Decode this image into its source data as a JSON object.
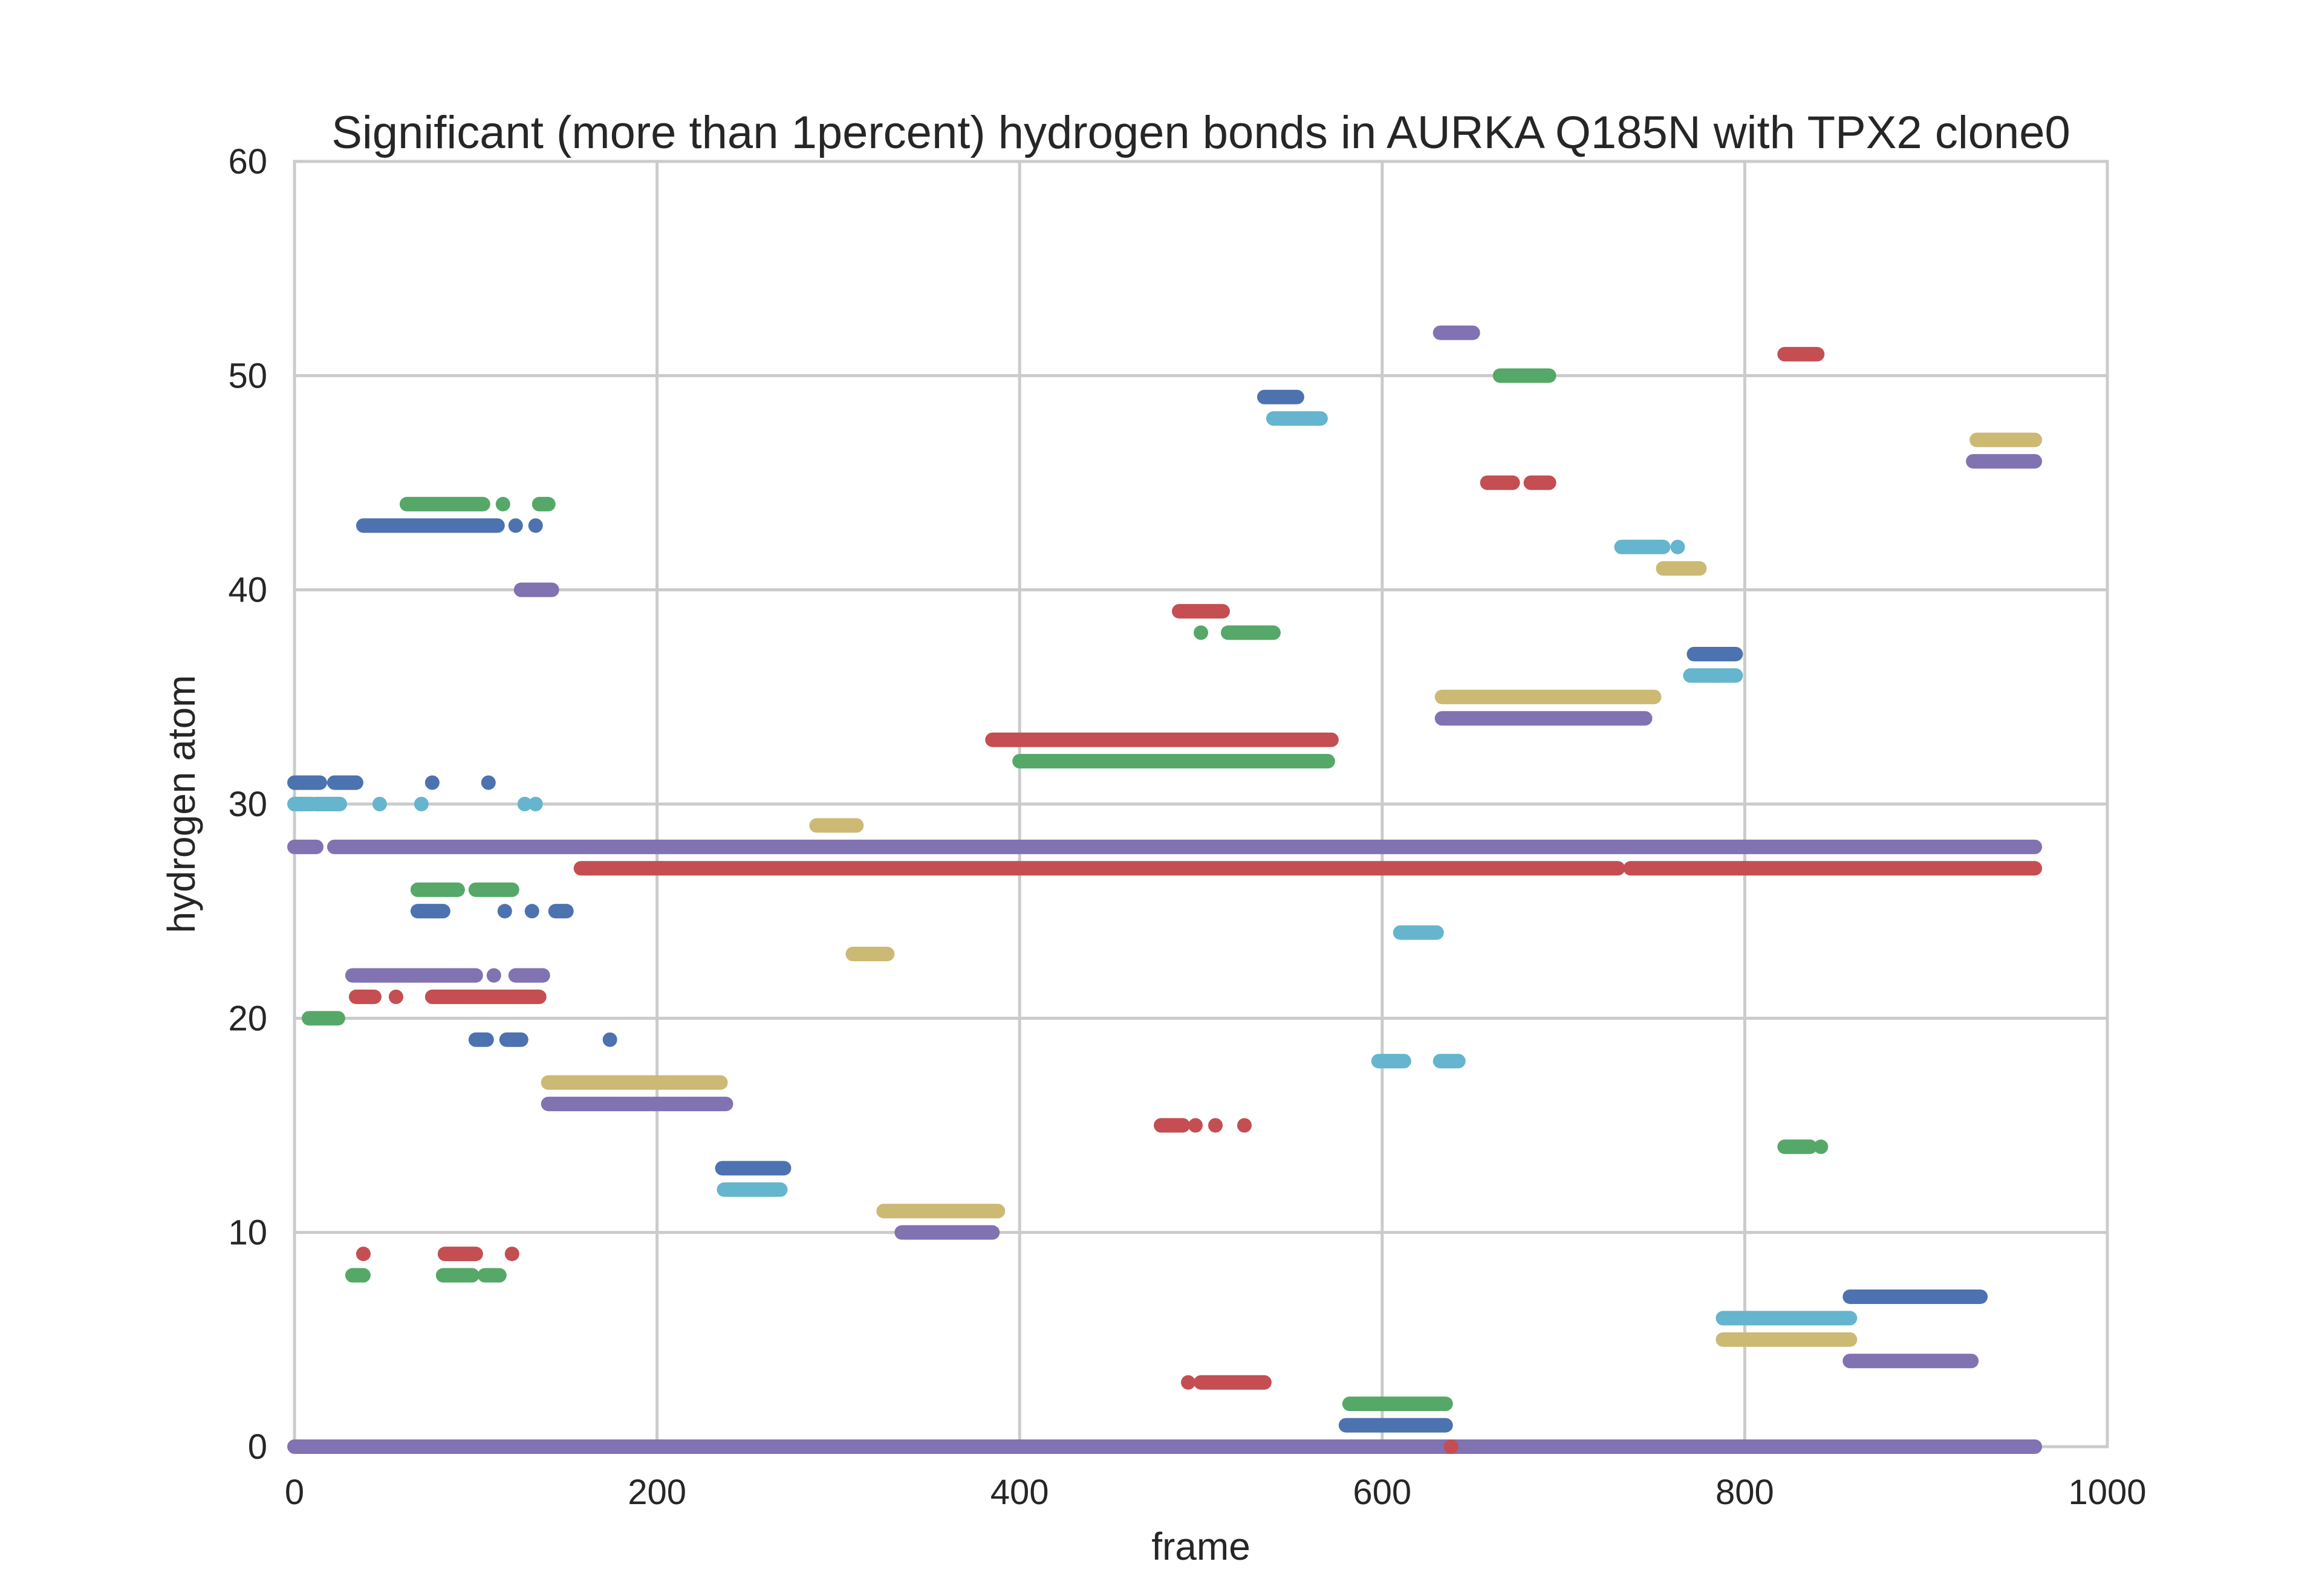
{
  "chart_data": {
    "type": "scatter",
    "title": "Significant (more than 1percent) hydrogen bonds in AURKA Q185N with TPX2 clone0",
    "xlabel": "frame",
    "ylabel": "hydrogen atom",
    "xlim": [
      0,
      1000
    ],
    "ylim": [
      0,
      60
    ],
    "xticks": [
      "0",
      "200",
      "400",
      "600",
      "800",
      "1000"
    ],
    "yticks": [
      "0",
      "10",
      "20",
      "30",
      "40",
      "50",
      "60"
    ],
    "grid": true,
    "legend": "none",
    "palette": {
      "blue": "#4C72B0",
      "green": "#55A868",
      "red": "#C44E52",
      "purple": "#8172B2",
      "yellow": "#CCB974",
      "cyan": "#64B5CD"
    },
    "segments": [
      {
        "color": "purple",
        "y": 0,
        "x0": 0,
        "x1": 960
      },
      {
        "color": "blue",
        "y": 1,
        "x0": 580,
        "x1": 635
      },
      {
        "color": "green",
        "y": 2,
        "x0": 582,
        "x1": 635
      },
      {
        "color": "red",
        "y": 3,
        "x0": 500,
        "x1": 535
      },
      {
        "color": "purple",
        "y": 4,
        "x0": 858,
        "x1": 925
      },
      {
        "color": "yellow",
        "y": 5,
        "x0": 788,
        "x1": 858
      },
      {
        "color": "cyan",
        "y": 6,
        "x0": 788,
        "x1": 858
      },
      {
        "color": "blue",
        "y": 7,
        "x0": 858,
        "x1": 930
      },
      {
        "color": "green",
        "y": 8,
        "x0": 32,
        "x1": 38
      },
      {
        "color": "green",
        "y": 8,
        "x0": 82,
        "x1": 98
      },
      {
        "color": "green",
        "y": 8,
        "x0": 105,
        "x1": 112
      },
      {
        "color": "red",
        "y": 9,
        "x0": 83,
        "x1": 100
      },
      {
        "color": "purple",
        "y": 10,
        "x0": 335,
        "x1": 385
      },
      {
        "color": "yellow",
        "y": 11,
        "x0": 325,
        "x1": 388
      },
      {
        "color": "cyan",
        "y": 12,
        "x0": 237,
        "x1": 268
      },
      {
        "color": "blue",
        "y": 13,
        "x0": 236,
        "x1": 270
      },
      {
        "color": "green",
        "y": 14,
        "x0": 822,
        "x1": 836
      },
      {
        "color": "red",
        "y": 15,
        "x0": 478,
        "x1": 490
      },
      {
        "color": "purple",
        "y": 16,
        "x0": 140,
        "x1": 238
      },
      {
        "color": "yellow",
        "y": 17,
        "x0": 140,
        "x1": 235
      },
      {
        "color": "cyan",
        "y": 18,
        "x0": 598,
        "x1": 612
      },
      {
        "color": "cyan",
        "y": 18,
        "x0": 632,
        "x1": 642
      },
      {
        "color": "blue",
        "y": 19,
        "x0": 100,
        "x1": 106
      },
      {
        "color": "blue",
        "y": 19,
        "x0": 117,
        "x1": 125
      },
      {
        "color": "green",
        "y": 20,
        "x0": 8,
        "x1": 24
      },
      {
        "color": "red",
        "y": 21,
        "x0": 34,
        "x1": 44
      },
      {
        "color": "red",
        "y": 21,
        "x0": 76,
        "x1": 135
      },
      {
        "color": "purple",
        "y": 22,
        "x0": 32,
        "x1": 100
      },
      {
        "color": "purple",
        "y": 22,
        "x0": 122,
        "x1": 137
      },
      {
        "color": "yellow",
        "y": 23,
        "x0": 308,
        "x1": 327
      },
      {
        "color": "cyan",
        "y": 24,
        "x0": 610,
        "x1": 630
      },
      {
        "color": "blue",
        "y": 25,
        "x0": 68,
        "x1": 82
      },
      {
        "color": "blue",
        "y": 25,
        "x0": 144,
        "x1": 150
      },
      {
        "color": "green",
        "y": 26,
        "x0": 68,
        "x1": 90
      },
      {
        "color": "green",
        "y": 26,
        "x0": 100,
        "x1": 120
      },
      {
        "color": "red",
        "y": 27,
        "x0": 158,
        "x1": 730
      },
      {
        "color": "red",
        "y": 27,
        "x0": 737,
        "x1": 960
      },
      {
        "color": "purple",
        "y": 28,
        "x0": 0,
        "x1": 12
      },
      {
        "color": "purple",
        "y": 28,
        "x0": 22,
        "x1": 960
      },
      {
        "color": "yellow",
        "y": 29,
        "x0": 288,
        "x1": 310
      },
      {
        "color": "cyan",
        "y": 30,
        "x0": 0,
        "x1": 10
      },
      {
        "color": "cyan",
        "y": 30,
        "x0": 12,
        "x1": 25
      },
      {
        "color": "blue",
        "y": 31,
        "x0": 0,
        "x1": 14
      },
      {
        "color": "blue",
        "y": 31,
        "x0": 22,
        "x1": 34
      },
      {
        "color": "green",
        "y": 32,
        "x0": 400,
        "x1": 570
      },
      {
        "color": "red",
        "y": 33,
        "x0": 385,
        "x1": 572
      },
      {
        "color": "purple",
        "y": 34,
        "x0": 633,
        "x1": 745
      },
      {
        "color": "yellow",
        "y": 35,
        "x0": 633,
        "x1": 750
      },
      {
        "color": "cyan",
        "y": 36,
        "x0": 770,
        "x1": 795
      },
      {
        "color": "blue",
        "y": 37,
        "x0": 772,
        "x1": 795
      },
      {
        "color": "green",
        "y": 38,
        "x0": 515,
        "x1": 540
      },
      {
        "color": "red",
        "y": 39,
        "x0": 488,
        "x1": 512
      },
      {
        "color": "purple",
        "y": 40,
        "x0": 125,
        "x1": 142
      },
      {
        "color": "yellow",
        "y": 41,
        "x0": 755,
        "x1": 775
      },
      {
        "color": "cyan",
        "y": 42,
        "x0": 732,
        "x1": 755
      },
      {
        "color": "blue",
        "y": 43,
        "x0": 38,
        "x1": 112
      },
      {
        "color": "green",
        "y": 44,
        "x0": 62,
        "x1": 104
      },
      {
        "color": "green",
        "y": 44,
        "x0": 135,
        "x1": 140
      },
      {
        "color": "red",
        "y": 45,
        "x0": 658,
        "x1": 672
      },
      {
        "color": "red",
        "y": 45,
        "x0": 682,
        "x1": 692
      },
      {
        "color": "purple",
        "y": 46,
        "x0": 926,
        "x1": 960
      },
      {
        "color": "yellow",
        "y": 47,
        "x0": 928,
        "x1": 960
      },
      {
        "color": "cyan",
        "y": 48,
        "x0": 540,
        "x1": 566
      },
      {
        "color": "blue",
        "y": 49,
        "x0": 535,
        "x1": 553
      },
      {
        "color": "green",
        "y": 50,
        "x0": 665,
        "x1": 692
      },
      {
        "color": "red",
        "y": 51,
        "x0": 822,
        "x1": 840
      },
      {
        "color": "purple",
        "y": 52,
        "x0": 632,
        "x1": 650
      }
    ],
    "points": [
      {
        "color": "red",
        "y": 0,
        "x": 638
      },
      {
        "color": "red",
        "y": 3,
        "x": 493
      },
      {
        "color": "blue",
        "y": 43,
        "x": 122
      },
      {
        "color": "blue",
        "y": 43,
        "x": 133
      },
      {
        "color": "green",
        "y": 44,
        "x": 115
      },
      {
        "color": "blue",
        "y": 31,
        "x": 76
      },
      {
        "color": "blue",
        "y": 31,
        "x": 107
      },
      {
        "color": "cyan",
        "y": 30,
        "x": 47
      },
      {
        "color": "cyan",
        "y": 30,
        "x": 70
      },
      {
        "color": "cyan",
        "y": 30,
        "x": 127
      },
      {
        "color": "cyan",
        "y": 30,
        "x": 133
      },
      {
        "color": "blue",
        "y": 25,
        "x": 116
      },
      {
        "color": "blue",
        "y": 25,
        "x": 131
      },
      {
        "color": "purple",
        "y": 22,
        "x": 90
      },
      {
        "color": "purple",
        "y": 22,
        "x": 110
      },
      {
        "color": "red",
        "y": 21,
        "x": 56
      },
      {
        "color": "blue",
        "y": 19,
        "x": 174
      },
      {
        "color": "red",
        "y": 9,
        "x": 38
      },
      {
        "color": "red",
        "y": 9,
        "x": 120
      },
      {
        "color": "green",
        "y": 8,
        "x": 113
      },
      {
        "color": "red",
        "y": 15,
        "x": 497
      },
      {
        "color": "red",
        "y": 15,
        "x": 508
      },
      {
        "color": "red",
        "y": 15,
        "x": 524
      },
      {
        "color": "green",
        "y": 38,
        "x": 500
      },
      {
        "color": "cyan",
        "y": 42,
        "x": 763
      },
      {
        "color": "green",
        "y": 14,
        "x": 842
      },
      {
        "color": "cyan",
        "y": 36,
        "x": 785
      }
    ]
  }
}
